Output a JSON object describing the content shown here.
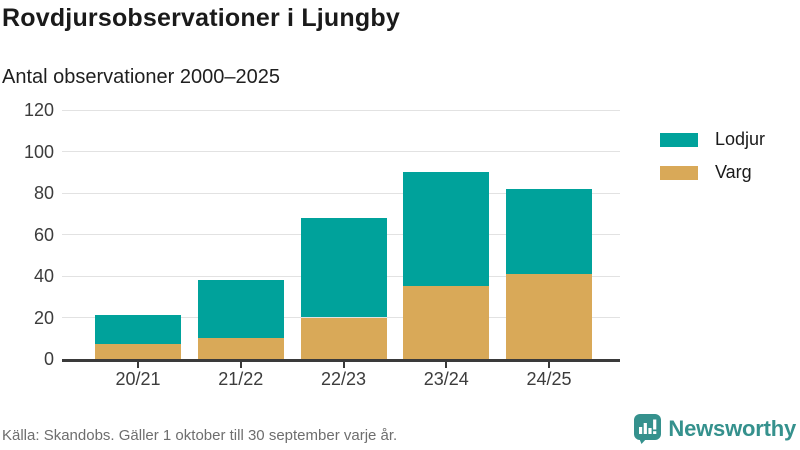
{
  "header": {
    "title": "Rovdjursobservationer i Ljungby",
    "subtitle": "Antal observationer 2000–2025"
  },
  "chart_data": {
    "type": "bar",
    "stacked": true,
    "title": "Rovdjursobservationer i Ljungby",
    "subtitle": "Antal observationer 2000–2025",
    "categories": [
      "20/21",
      "21/22",
      "22/23",
      "23/24",
      "24/25"
    ],
    "series": [
      {
        "name": "Lodjur",
        "color": "#00a29b",
        "values": [
          14,
          28,
          48,
          55,
          41
        ]
      },
      {
        "name": "Varg",
        "color": "#d9a958",
        "values": [
          7,
          10,
          20,
          35,
          41
        ]
      }
    ],
    "totals": [
      21,
      38,
      68,
      90,
      82
    ],
    "xlabel": "",
    "ylabel": "",
    "ylim": [
      0,
      120
    ],
    "yticks": [
      0,
      20,
      40,
      60,
      80,
      100,
      120
    ],
    "grid": true,
    "legend_position": "right",
    "colors": {
      "grid": "#e2e2e2",
      "axis": "#3a3a3a",
      "text": "#3c3c3c"
    }
  },
  "footer": {
    "source": "Källa: Skandobs. Gäller 1 oktober till 30 september varje år.",
    "brand": "Newsworthy"
  }
}
